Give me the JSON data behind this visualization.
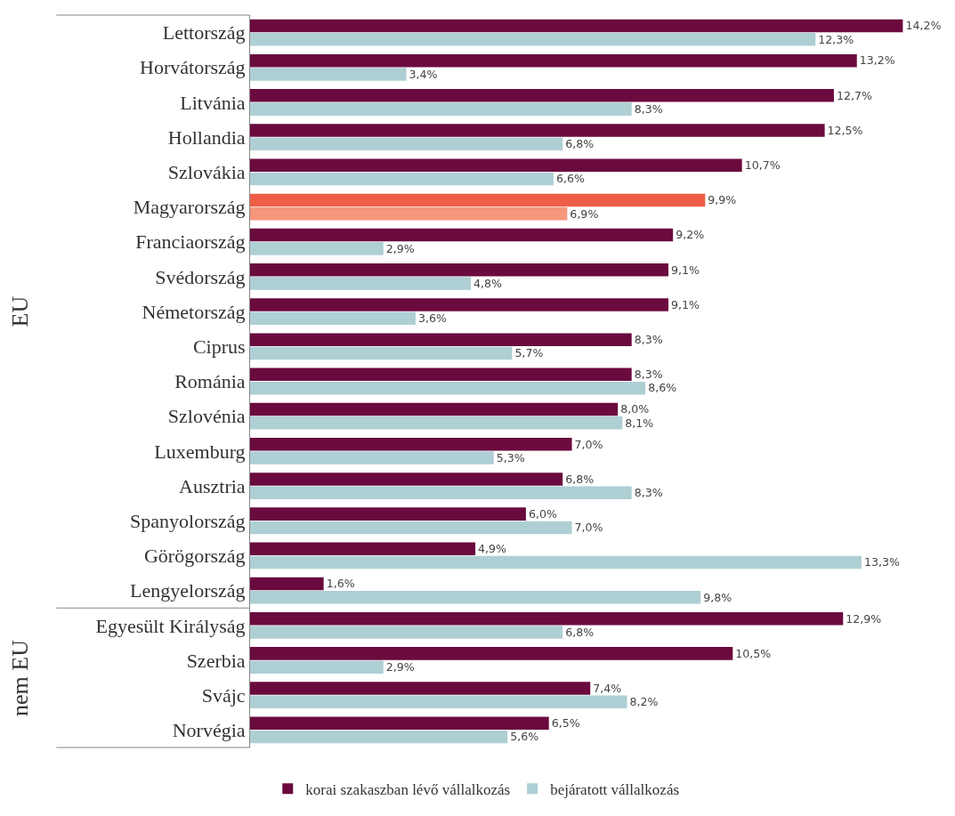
{
  "chart_data": {
    "type": "bar",
    "orientation": "horizontal",
    "legend": "bottom",
    "grid": false,
    "categories": [
      "Lettország",
      "Horvátország",
      "Litvánia",
      "Hollandia",
      "Szlovákia",
      "Magyarország",
      "Franciaország",
      "Svédország",
      "Németország",
      "Ciprus",
      "Románia",
      "Szlovénia",
      "Luxemburg",
      "Ausztria",
      "Spanyolország",
      "Görögország",
      "Lengyelország",
      "Egyesült Királyság",
      "Szerbia",
      "Svájc",
      "Norvégia"
    ],
    "series": [
      {
        "name": "korai szakaszban lévő vállalkozás",
        "color": "#6b0a3e",
        "colors": [
          null,
          null,
          null,
          null,
          null,
          "#ee5e47",
          null,
          null,
          null,
          null,
          null,
          null,
          null,
          null,
          null,
          null,
          null,
          null,
          null,
          null,
          null
        ],
        "values": [
          14.2,
          13.2,
          12.7,
          12.5,
          10.7,
          9.9,
          9.2,
          9.1,
          9.1,
          8.3,
          8.3,
          8.0,
          7.0,
          6.8,
          6.0,
          4.9,
          1.6,
          12.9,
          10.5,
          7.4,
          6.5
        ],
        "value_labels": [
          "14,2%",
          "13,2%",
          "12,7%",
          "12,5%",
          "10,7%",
          "9,9%",
          "9,2%",
          "9,1%",
          "9,1%",
          "8,3%",
          "8,3%",
          "8,0%",
          "7,0%",
          "6,8%",
          "6,0%",
          "4,9%",
          "1,6%",
          "12,9%",
          "10,5%",
          "7,4%",
          "6,5%"
        ]
      },
      {
        "name": "bejáratott vállalkozás",
        "color": "#aecfd4",
        "colors": [
          null,
          null,
          null,
          null,
          null,
          "#f4977b",
          null,
          null,
          null,
          null,
          null,
          null,
          null,
          null,
          null,
          null,
          null,
          null,
          null,
          null,
          null
        ],
        "values": [
          12.3,
          3.4,
          8.3,
          6.8,
          6.6,
          6.9,
          2.9,
          4.8,
          3.6,
          5.7,
          8.6,
          8.1,
          5.3,
          8.3,
          7.0,
          13.3,
          9.8,
          6.8,
          2.9,
          8.2,
          5.6
        ],
        "value_labels": [
          "12,3%",
          "3,4%",
          "8,3%",
          "6,8%",
          "6,6%",
          "6,9%",
          "2,9%",
          "4,8%",
          "3,6%",
          "5,7%",
          "8,6%",
          "8,1%",
          "5,3%",
          "8,3%",
          "7,0%",
          "13,3%",
          "9,8%",
          "6,8%",
          "2,9%",
          "8,2%",
          "5,6%"
        ]
      }
    ],
    "annotations": [
      "EU",
      "nem EU"
    ]
  }
}
